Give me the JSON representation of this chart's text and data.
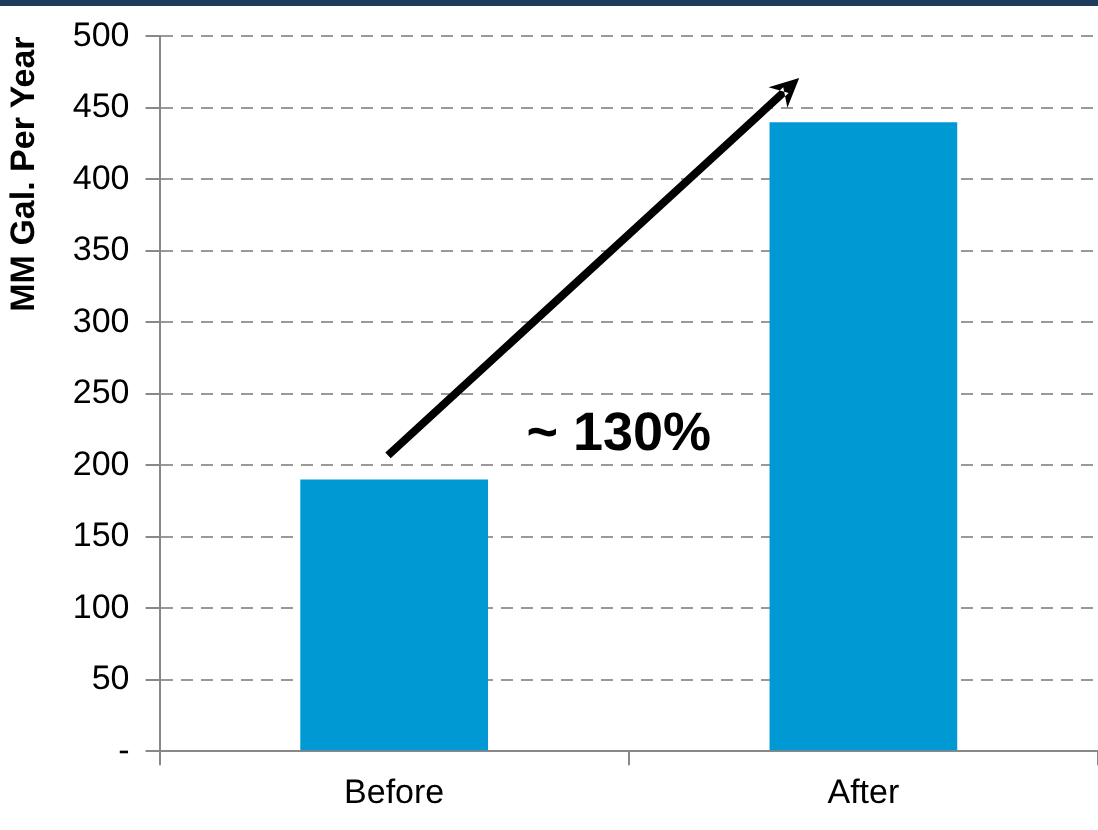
{
  "chart_data": {
    "type": "bar",
    "ylabel": "MM Gal. Per Year",
    "categories": [
      "Before",
      "After"
    ],
    "values": [
      190,
      440
    ],
    "color": "#0099d4",
    "ylim": [
      0,
      500
    ],
    "yticks": [
      {
        "value": 0,
        "label": "-"
      },
      50,
      100,
      150,
      200,
      250,
      300,
      350,
      400,
      450,
      500
    ],
    "grid": "y",
    "annotations": [
      "~ 130%"
    ]
  }
}
